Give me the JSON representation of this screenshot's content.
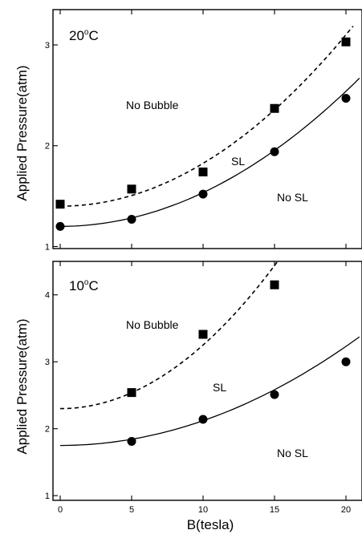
{
  "chart_data": [
    {
      "type": "scatter",
      "temperature_label": "20",
      "temperature_unit": "C",
      "ylabel": "Applied Pressure(atm)",
      "xlim": [
        0,
        20
      ],
      "ylim": [
        0.98,
        3.35
      ],
      "xticks": [
        0,
        5,
        10,
        15,
        20
      ],
      "yticks": [
        1,
        2,
        3
      ],
      "annotations": [
        "No Bubble",
        "SL",
        "No SL"
      ],
      "series": [
        {
          "marker": "square",
          "x": [
            0,
            5,
            10,
            15,
            20
          ],
          "y": [
            1.42,
            1.57,
            1.74,
            2.37,
            3.03
          ]
        },
        {
          "marker": "circle",
          "x": [
            0,
            5,
            10,
            15,
            20
          ],
          "y": [
            1.2,
            1.27,
            1.52,
            1.94,
            2.47
          ]
        }
      ],
      "fits": [
        {
          "style": "dashed",
          "a": 1.4,
          "b": 0.00425,
          "xmax": 20.5
        },
        {
          "style": "solid",
          "a": 1.2,
          "b": 0.00335,
          "xmax": 21.3
        }
      ]
    },
    {
      "type": "scatter",
      "temperature_label": "10",
      "temperature_unit": "C",
      "ylabel": "Applied Pressure(atm)",
      "xlabel": "B(tesla)",
      "xlim": [
        0,
        20
      ],
      "ylim": [
        0.93,
        4.5
      ],
      "xticks": [
        0,
        5,
        10,
        15,
        20
      ],
      "yticks": [
        1,
        2,
        3,
        4
      ],
      "annotations": [
        "No Bubble",
        "SL",
        "No SL"
      ],
      "series": [
        {
          "marker": "square",
          "x": [
            5,
            10,
            15
          ],
          "y": [
            2.54,
            3.41,
            4.15
          ]
        },
        {
          "marker": "circle",
          "x": [
            5,
            10,
            15,
            20
          ],
          "y": [
            1.81,
            2.14,
            2.51,
            3.0
          ]
        }
      ],
      "fits": [
        {
          "style": "dashed",
          "a": 2.3,
          "b": 0.0095,
          "xmax": 15.7
        },
        {
          "style": "solid",
          "a": 1.75,
          "b": 0.0037,
          "xmax": 21.3
        }
      ]
    }
  ]
}
